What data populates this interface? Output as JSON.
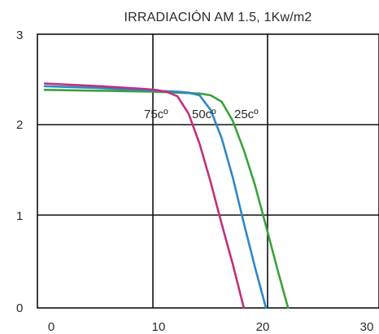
{
  "chart_data": {
    "type": "line",
    "title": "IRRADIACIÓN   AM 1.5, 1Kw/m2",
    "xlabel": "",
    "ylabel": "",
    "xlim": [
      0,
      30
    ],
    "ylim": [
      0,
      3
    ],
    "x_ticks": [
      "0",
      "10",
      "20",
      "30"
    ],
    "y_ticks": [
      "0",
      "1",
      "2",
      "3"
    ],
    "grid": true,
    "series": [
      {
        "name": "75cº",
        "color": "#c0307a",
        "x": [
          0,
          5,
          9,
          10,
          11,
          12,
          13,
          14,
          15,
          16,
          17,
          18
        ],
        "y": [
          2.46,
          2.43,
          2.4,
          2.39,
          2.37,
          2.32,
          2.13,
          1.8,
          1.38,
          0.92,
          0.48,
          0.0
        ]
      },
      {
        "name": "50cº",
        "color": "#2f86c6",
        "x": [
          0,
          5,
          10,
          12,
          13,
          14,
          15,
          16,
          17,
          18,
          19,
          20
        ],
        "y": [
          2.43,
          2.41,
          2.38,
          2.37,
          2.36,
          2.33,
          2.17,
          1.86,
          1.43,
          0.93,
          0.45,
          0.0
        ]
      },
      {
        "name": "25cº",
        "color": "#3aa23a",
        "x": [
          0,
          5,
          10,
          14,
          15,
          16,
          17,
          18,
          19,
          20,
          21,
          22
        ],
        "y": [
          2.39,
          2.38,
          2.37,
          2.35,
          2.33,
          2.26,
          2.05,
          1.73,
          1.35,
          0.9,
          0.44,
          0.0
        ]
      }
    ],
    "curve_labels": [
      {
        "text": "75cº",
        "x": 11.2,
        "y": 2.06
      },
      {
        "text": "50cº",
        "x": 14.0,
        "y": 2.06
      },
      {
        "text": "25cº",
        "x": 18.0,
        "y": 2.06
      }
    ]
  }
}
